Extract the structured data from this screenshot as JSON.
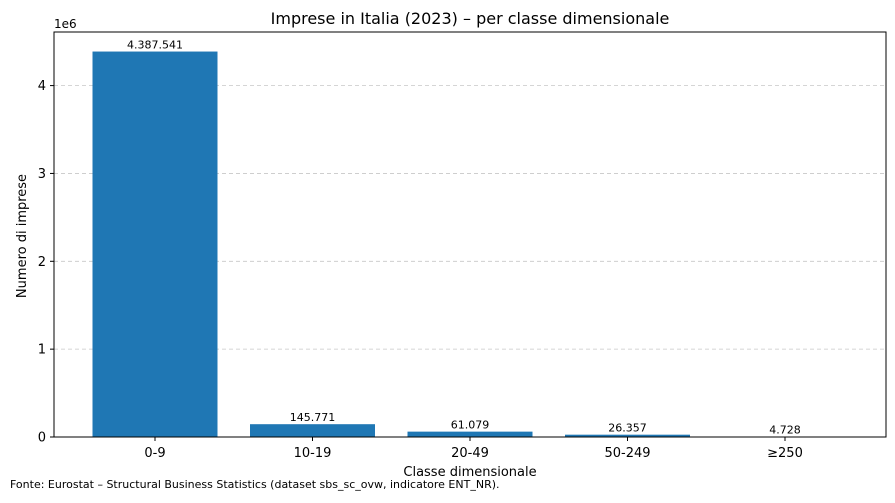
{
  "chart_data": {
    "type": "bar",
    "title": "Imprese in Italia (2023) – per classe dimensionale",
    "xlabel": "Classe dimensionale",
    "ylabel": "Numero di imprese",
    "y_scale_label": "1e6",
    "y_scale_factor": 1000000,
    "categories": [
      "0-9",
      "10-19",
      "20-49",
      "50-249",
      "≥250"
    ],
    "values": [
      4387541,
      145771,
      61079,
      26357,
      4728
    ],
    "value_labels": [
      "4.387.541",
      "145.771",
      "61.079",
      "26.357",
      "4.728"
    ],
    "ylim": [
      0,
      4610000
    ],
    "yticks": [
      0,
      1000000,
      2000000,
      3000000,
      4000000
    ],
    "ytick_labels": [
      "0",
      "1",
      "2",
      "3",
      "4"
    ],
    "grid": "y-dashed",
    "legend": "none",
    "bar_color": "#1f77b4"
  },
  "source_note": "Fonte: Eurostat – Structural Business Statistics (dataset sbs_sc_ovw, indicatore ENT_NR)."
}
